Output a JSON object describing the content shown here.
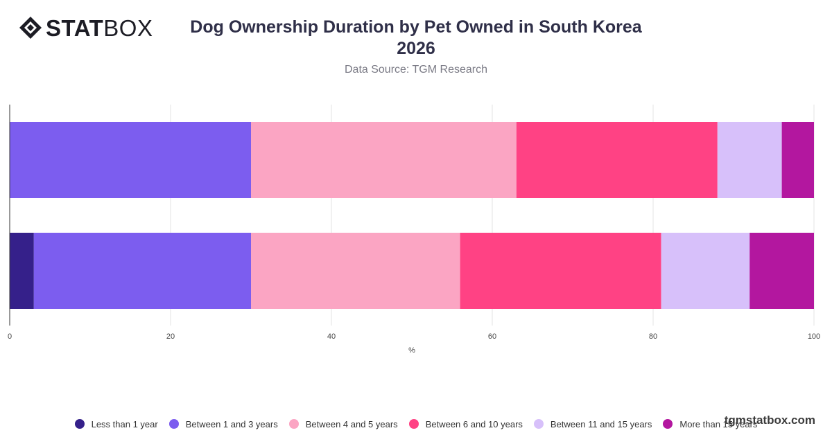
{
  "logo": {
    "bold": "STAT",
    "light": "BOX",
    "icon": "diamond-logo-icon"
  },
  "watermark": "tgmstatbox.com",
  "chart_data": {
    "type": "bar",
    "orientation": "horizontal",
    "stacked": true,
    "title_line1": "Dog Ownership Duration by Pet Owned in South Korea",
    "title_line2": "2026",
    "subtitle": "Data Source: TGM Research",
    "xlabel": "%",
    "ylabel": "",
    "xlim": [
      0,
      100
    ],
    "x_ticks": [
      0,
      20,
      40,
      60,
      80,
      100
    ],
    "grid": true,
    "legend_position": "bottom",
    "categories": [
      "",
      ""
    ],
    "series": [
      {
        "name": "Less than 1 year",
        "color": "#35208a",
        "values": [
          0,
          3
        ]
      },
      {
        "name": "Between 1 and 3 years",
        "color": "#7c5def",
        "values": [
          30,
          27
        ]
      },
      {
        "name": "Between 4 and 5 years",
        "color": "#fba5c3",
        "values": [
          33,
          26
        ]
      },
      {
        "name": "Between 6 and 10 years",
        "color": "#ff4284",
        "values": [
          25,
          25
        ]
      },
      {
        "name": "Between 11 and 15 years",
        "color": "#d7c0fa",
        "values": [
          8,
          11
        ]
      },
      {
        "name": "More than 15 years",
        "color": "#b3179f",
        "values": [
          4,
          8
        ]
      }
    ]
  }
}
